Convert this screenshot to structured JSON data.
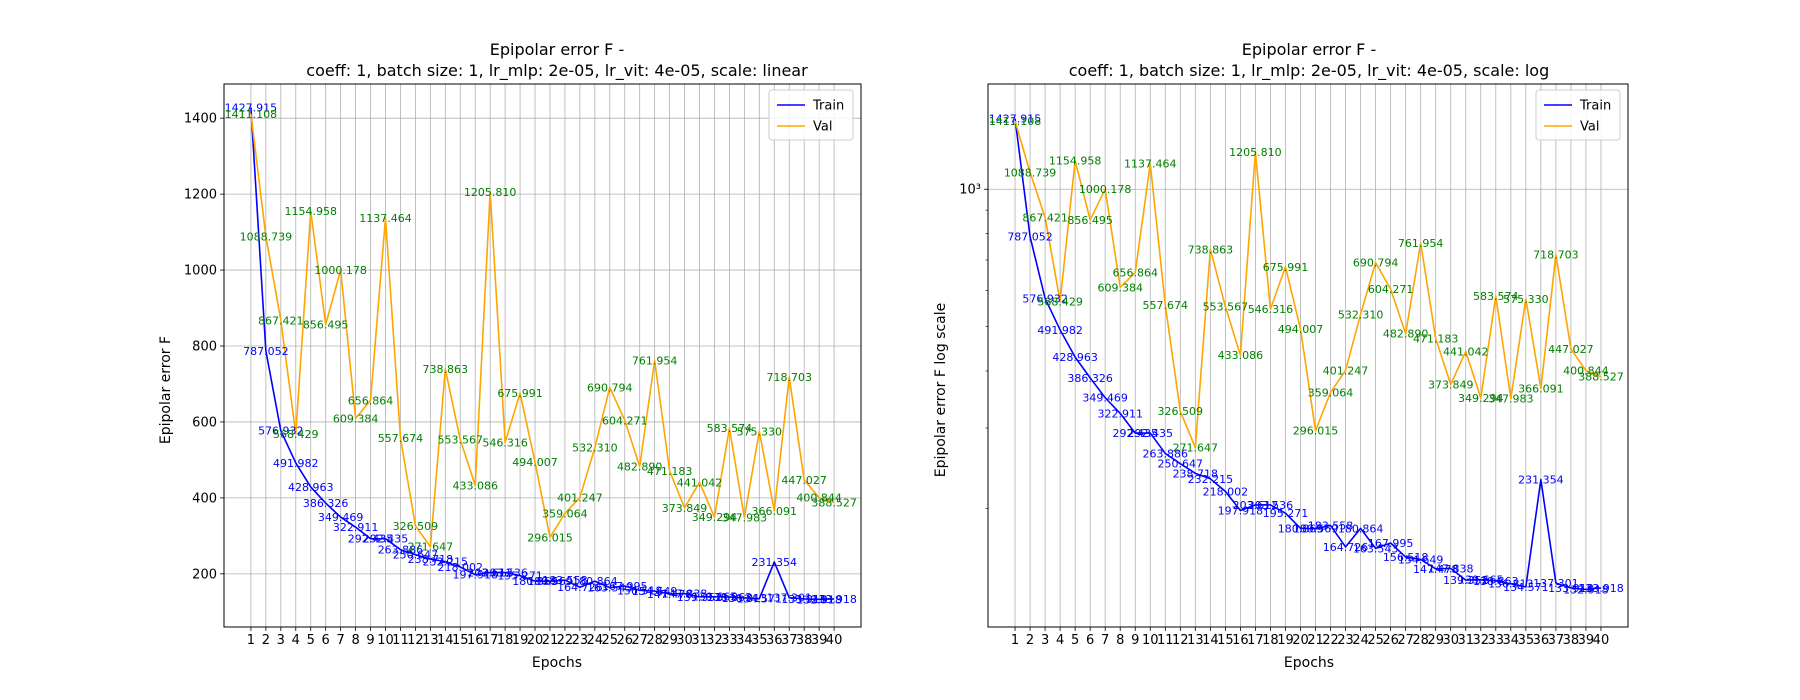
{
  "colors": {
    "train": "#0000ff",
    "val": "#ffa500",
    "train_label": "#0000ff",
    "val_label": "#008000",
    "grid": "#b0b0b0"
  },
  "chart_data": [
    {
      "type": "line",
      "title_line1": "Epipolar error F -",
      "title_line2": "coeff: 1, batch size: 1, lr_mlp: 2e-05, lr_vit: 4e-05, scale: linear",
      "xlabel": "Epochs",
      "ylabel": "Epipolar error F",
      "yscale": "linear",
      "ylim": [
        60,
        1490
      ],
      "yticks": [
        200,
        400,
        600,
        800,
        1000,
        1200,
        1400
      ],
      "grid": true,
      "legend": "top-right",
      "x": [
        1,
        2,
        3,
        4,
        5,
        6,
        7,
        8,
        9,
        10,
        11,
        12,
        13,
        14,
        15,
        16,
        17,
        18,
        19,
        20,
        21,
        22,
        23,
        24,
        25,
        26,
        27,
        28,
        29,
        30,
        31,
        32,
        33,
        34,
        35,
        36,
        37,
        38,
        39,
        40
      ],
      "series": [
        {
          "name": "Train",
          "labels": [
            "1427.915",
            "787.052",
            "576.932",
            "491.982",
            "428.963",
            "386.326",
            "349.469",
            "322.911",
            "292.435",
            "292.435",
            "263.886",
            "250.647",
            "238.718",
            "232.215",
            "218.002",
            "197.918",
            "203.612",
            "203.536",
            "195.271",
            "180.869",
            "180.569",
            "183.558",
            "164.726",
            "180.864",
            "163.543",
            "167.995",
            "156.518",
            "154.649",
            "147.478",
            "147.838",
            "139.352",
            "139.665",
            "138.863",
            "136.813",
            "134.571",
            "231.354",
            "137.301",
            "133.918",
            "132.918",
            "133.918"
          ],
          "values": [
            1427.915,
            787.052,
            576.932,
            491.982,
            428.963,
            386.326,
            349.469,
            322.911,
            292.435,
            292.435,
            263.886,
            250.647,
            238.718,
            232.215,
            218.002,
            197.918,
            203.612,
            203.536,
            195.271,
            180.869,
            180.569,
            183.558,
            164.726,
            180.864,
            163.543,
            167.995,
            156.518,
            154.649,
            147.478,
            147.838,
            139.352,
            139.665,
            138.863,
            136.813,
            134.571,
            231.354,
            137.301,
            133.918,
            132.918,
            133.918
          ]
        },
        {
          "name": "Val",
          "labels": [
            "1411.108",
            "1088.739",
            "867.421",
            "568.429",
            "1154.958",
            "856.495",
            "1000.178",
            "609.384",
            "656.864",
            "1137.464",
            "557.674",
            "326.509",
            "271.647",
            "738.863",
            "553.567",
            "433.086",
            "1205.810",
            "546.316",
            "675.991",
            "494.007",
            "296.015",
            "359.064",
            "401.247",
            "532.310",
            "690.794",
            "604.271",
            "482.890",
            "761.954",
            "471.183",
            "373.849",
            "441.042",
            "349.294",
            "583.574",
            "347.983",
            "575.330",
            "366.091",
            "718.703",
            "447.027",
            "400.844",
            "388.527"
          ],
          "values": [
            1411.108,
            1088.739,
            867.421,
            568.429,
            1154.958,
            856.495,
            1000.178,
            609.384,
            656.864,
            1137.464,
            557.674,
            326.509,
            271.647,
            738.863,
            553.567,
            433.086,
            1205.81,
            546.316,
            675.991,
            494.007,
            296.015,
            359.064,
            401.247,
            532.31,
            690.794,
            604.271,
            482.89,
            761.954,
            471.183,
            373.849,
            441.042,
            349.294,
            583.574,
            347.983,
            575.33,
            366.091,
            718.703,
            447.027,
            400.844,
            388.527
          ]
        }
      ]
    },
    {
      "type": "line",
      "title_line1": "Epipolar error F -",
      "title_line2": "coeff: 1, batch size: 1, lr_mlp: 2e-05, lr_vit: 4e-05, scale: log",
      "xlabel": "Epochs",
      "ylabel": "Epipolar error F log scale",
      "yscale": "log",
      "ylim": [
        110,
        1700
      ],
      "yticks": [
        1000
      ],
      "ytick_labels": [
        "10³"
      ],
      "grid": true,
      "legend": "top-right",
      "x": [
        1,
        2,
        3,
        4,
        5,
        6,
        7,
        8,
        9,
        10,
        11,
        12,
        13,
        14,
        15,
        16,
        17,
        18,
        19,
        20,
        21,
        22,
        23,
        24,
        25,
        26,
        27,
        28,
        29,
        30,
        31,
        32,
        33,
        34,
        35,
        36,
        37,
        38,
        39,
        40
      ],
      "series": [
        {
          "name": "Train",
          "labels": [
            "1427.915",
            "787.052",
            "576.932",
            "491.982",
            "428.963",
            "386.326",
            "349.469",
            "322.911",
            "292.435",
            "292.435",
            "263.886",
            "250.647",
            "238.718",
            "232.215",
            "218.002",
            "197.918",
            "203.612",
            "203.536",
            "195.271",
            "180.869",
            "180.569",
            "183.558",
            "164.726",
            "180.864",
            "163.543",
            "167.995",
            "156.518",
            "154.649",
            "147.478",
            "147.838",
            "139.352",
            "139.665",
            "138.863",
            "136.813",
            "134.571",
            "231.354",
            "137.301",
            "133.918",
            "132.918",
            "133.918"
          ],
          "values": [
            1427.915,
            787.052,
            576.932,
            491.982,
            428.963,
            386.326,
            349.469,
            322.911,
            292.435,
            292.435,
            263.886,
            250.647,
            238.718,
            232.215,
            218.002,
            197.918,
            203.612,
            203.536,
            195.271,
            180.869,
            180.569,
            183.558,
            164.726,
            180.864,
            163.543,
            167.995,
            156.518,
            154.649,
            147.478,
            147.838,
            139.352,
            139.665,
            138.863,
            136.813,
            134.571,
            231.354,
            137.301,
            133.918,
            132.918,
            133.918
          ]
        },
        {
          "name": "Val",
          "labels": [
            "1411.108",
            "1088.739",
            "867.421",
            "568.429",
            "1154.958",
            "856.495",
            "1000.178",
            "609.384",
            "656.864",
            "1137.464",
            "557.674",
            "326.509",
            "271.647",
            "738.863",
            "553.567",
            "433.086",
            "1205.810",
            "546.316",
            "675.991",
            "494.007",
            "296.015",
            "359.064",
            "401.247",
            "532.310",
            "690.794",
            "604.271",
            "482.890",
            "761.954",
            "471.183",
            "373.849",
            "441.042",
            "349.294",
            "583.574",
            "347.983",
            "575.330",
            "366.091",
            "718.703",
            "447.027",
            "400.844",
            "388.527"
          ],
          "values": [
            1411.108,
            1088.739,
            867.421,
            568.429,
            1154.958,
            856.495,
            1000.178,
            609.384,
            656.864,
            1137.464,
            557.674,
            326.509,
            271.647,
            738.863,
            553.567,
            433.086,
            1205.81,
            546.316,
            675.991,
            494.007,
            296.015,
            359.064,
            401.247,
            532.31,
            690.794,
            604.271,
            482.89,
            761.954,
            471.183,
            373.849,
            441.042,
            349.294,
            583.574,
            347.983,
            575.33,
            366.091,
            718.703,
            447.027,
            400.844,
            388.527
          ]
        }
      ]
    }
  ]
}
